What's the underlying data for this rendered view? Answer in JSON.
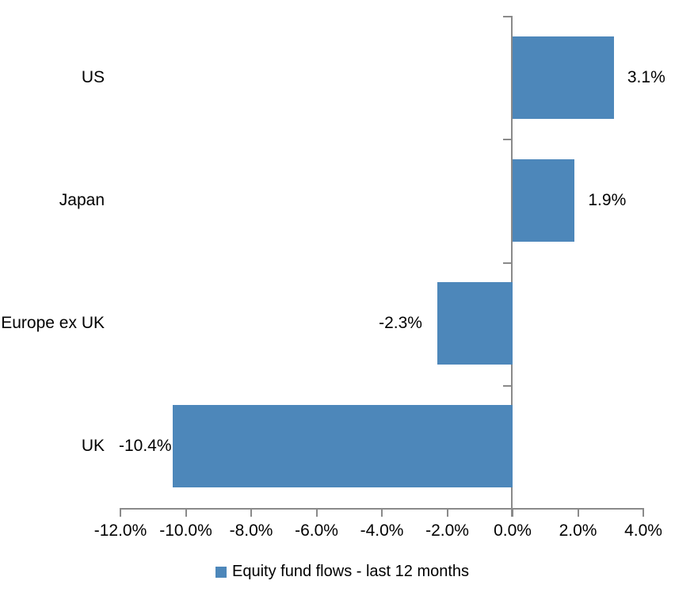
{
  "chart_data": {
    "type": "bar",
    "orientation": "horizontal",
    "title": "",
    "categories": [
      "US",
      "Japan",
      "Europe ex UK",
      "UK"
    ],
    "values": [
      3.1,
      1.9,
      -2.3,
      -10.4
    ],
    "data_labels": [
      "3.1%",
      "1.9%",
      "-2.3%",
      "-10.4%"
    ],
    "x_ticks": [
      -12,
      -10,
      -8,
      -6,
      -4,
      -2,
      0,
      2,
      4
    ],
    "x_tick_labels": [
      "-12.0%",
      "-10.0%",
      "-8.0%",
      "-6.0%",
      "-4.0%",
      "-2.0%",
      "0.0%",
      "2.0%",
      "4.0%"
    ],
    "xlim": [
      -12,
      4
    ],
    "grid": false,
    "bar_color": "#4D87BA",
    "axis_color": "#8A8A8A",
    "text_color": "#000000",
    "legend": {
      "label": "Equity fund flows - last 12 months",
      "position": "bottom"
    }
  }
}
